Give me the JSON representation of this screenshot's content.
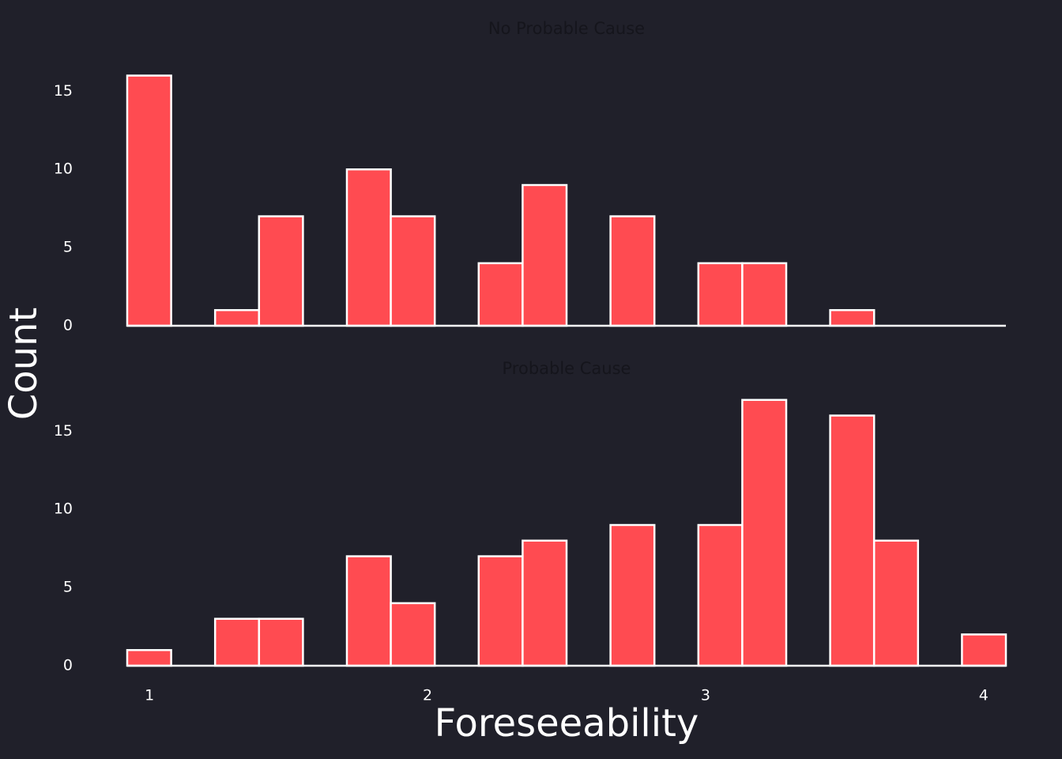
{
  "chart_data": [
    {
      "type": "histogram",
      "title": "No Probable Cause",
      "ylabel": "Count",
      "bins": [
        0.92,
        1.078,
        1.236,
        1.394,
        1.552,
        1.71,
        1.868,
        2.026,
        2.184,
        2.342,
        2.5,
        2.658,
        2.816,
        2.974,
        3.132,
        3.29,
        3.448,
        3.606,
        3.764,
        3.922,
        4.08
      ],
      "counts": [
        16,
        0,
        1,
        7,
        0,
        10,
        7,
        0,
        4,
        9,
        0,
        7,
        0,
        4,
        4,
        0,
        1,
        0,
        0,
        0
      ],
      "color": "#ff4b51",
      "edgecolor": "#ffffff",
      "xlim": [
        0.92,
        4.08
      ],
      "ylim": [
        0,
        17.85
      ],
      "yticks": [
        0,
        5,
        10,
        15
      ]
    },
    {
      "type": "histogram",
      "title": "Probable Cause",
      "xlabel": "Foreseeability",
      "bins": [
        0.92,
        1.078,
        1.236,
        1.394,
        1.552,
        1.71,
        1.868,
        2.026,
        2.184,
        2.342,
        2.5,
        2.658,
        2.816,
        2.974,
        3.132,
        3.29,
        3.448,
        3.606,
        3.764,
        3.922,
        4.08
      ],
      "counts": [
        1,
        0,
        3,
        3,
        0,
        7,
        4,
        0,
        7,
        8,
        0,
        9,
        0,
        9,
        17,
        0,
        16,
        8,
        0,
        2
      ],
      "color": "#ff4b51",
      "edgecolor": "#ffffff",
      "xlim": [
        0.92,
        4.08
      ],
      "ylim": [
        0,
        17.85
      ],
      "yticks": [
        0,
        5,
        10,
        15
      ],
      "xticks": [
        1,
        2,
        3,
        4
      ]
    }
  ]
}
